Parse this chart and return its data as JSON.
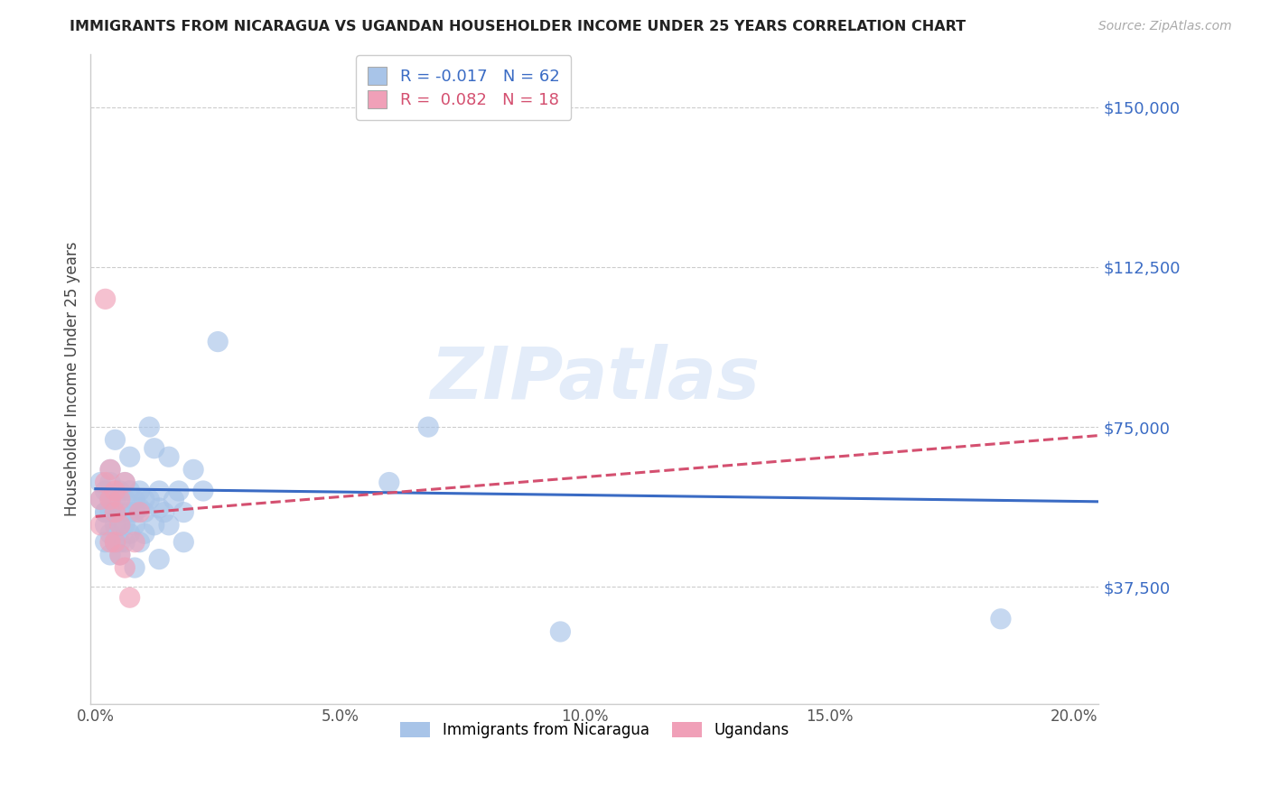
{
  "title": "IMMIGRANTS FROM NICARAGUA VS UGANDAN HOUSEHOLDER INCOME UNDER 25 YEARS CORRELATION CHART",
  "source": "Source: ZipAtlas.com",
  "ylabel": "Householder Income Under 25 years",
  "xlabel_ticks": [
    "0.0%",
    "5.0%",
    "10.0%",
    "15.0%",
    "20.0%"
  ],
  "xlabel_vals": [
    0.0,
    0.05,
    0.1,
    0.15,
    0.2
  ],
  "ytick_labels": [
    "$37,500",
    "$75,000",
    "$112,500",
    "$150,000"
  ],
  "ytick_vals": [
    37500,
    75000,
    112500,
    150000
  ],
  "ylim": [
    10000,
    162500
  ],
  "xlim": [
    -0.001,
    0.205
  ],
  "blue_color": "#a8c4e8",
  "pink_color": "#f0a0b8",
  "blue_line_color": "#3a6bc4",
  "pink_line_color": "#d45070",
  "legend_blue_label": "R = -0.017   N = 62",
  "legend_pink_label": "R =  0.082   N = 18",
  "watermark": "ZIPatlas",
  "legend_entries": [
    "Immigrants from Nicaragua",
    "Ugandans"
  ],
  "blue_scatter_x": [
    0.001,
    0.001,
    0.002,
    0.002,
    0.002,
    0.002,
    0.002,
    0.003,
    0.003,
    0.003,
    0.003,
    0.003,
    0.003,
    0.004,
    0.004,
    0.004,
    0.004,
    0.004,
    0.005,
    0.005,
    0.005,
    0.005,
    0.005,
    0.006,
    0.006,
    0.006,
    0.006,
    0.007,
    0.007,
    0.007,
    0.007,
    0.008,
    0.008,
    0.008,
    0.008,
    0.009,
    0.009,
    0.009,
    0.01,
    0.01,
    0.01,
    0.011,
    0.011,
    0.012,
    0.012,
    0.013,
    0.013,
    0.013,
    0.014,
    0.015,
    0.015,
    0.016,
    0.017,
    0.018,
    0.018,
    0.02,
    0.022,
    0.025,
    0.06,
    0.068,
    0.095,
    0.185
  ],
  "blue_scatter_y": [
    58000,
    62000,
    55000,
    60000,
    52000,
    48000,
    55000,
    65000,
    55000,
    50000,
    58000,
    62000,
    45000,
    72000,
    58000,
    55000,
    52000,
    48000,
    60000,
    55000,
    52000,
    48000,
    45000,
    62000,
    58000,
    52000,
    48000,
    68000,
    60000,
    55000,
    50000,
    58000,
    55000,
    52000,
    42000,
    60000,
    56000,
    48000,
    58000,
    55000,
    50000,
    75000,
    58000,
    70000,
    52000,
    60000,
    56000,
    44000,
    55000,
    68000,
    52000,
    58000,
    60000,
    55000,
    48000,
    65000,
    60000,
    95000,
    62000,
    75000,
    27000,
    30000
  ],
  "pink_scatter_x": [
    0.001,
    0.001,
    0.002,
    0.002,
    0.003,
    0.003,
    0.003,
    0.004,
    0.004,
    0.004,
    0.005,
    0.005,
    0.005,
    0.006,
    0.006,
    0.007,
    0.008,
    0.009
  ],
  "pink_scatter_y": [
    58000,
    52000,
    105000,
    62000,
    65000,
    58000,
    48000,
    60000,
    55000,
    48000,
    58000,
    52000,
    45000,
    62000,
    42000,
    35000,
    48000,
    55000
  ],
  "blue_line_x": [
    0.0,
    0.205
  ],
  "blue_line_y": [
    60500,
    57500
  ],
  "pink_line_x": [
    0.0,
    0.205
  ],
  "pink_line_y": [
    54000,
    73000
  ]
}
